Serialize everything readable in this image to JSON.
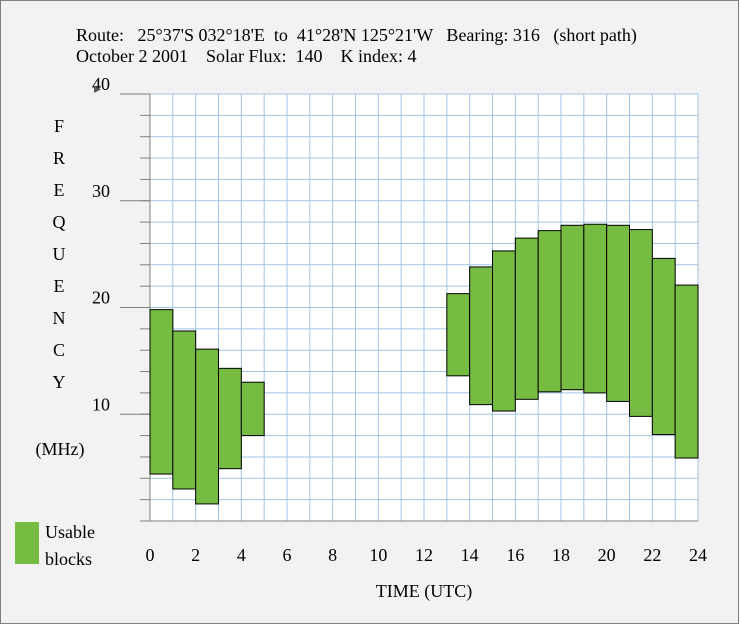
{
  "header": {
    "line1": "Route:   25°37'S 032°18'E  to  41°28'N 125°21'W   Bearing: 316   (short path)",
    "line2": "October 2 2001    Solar Flux:  140    K index: 4"
  },
  "ylabel_letters": [
    "F",
    "R",
    "E",
    "Q",
    "U",
    "E",
    "N",
    "C",
    "Y"
  ],
  "ylabel_unit": "(MHz)",
  "legend": {
    "line1": "Usable",
    "line2": "blocks"
  },
  "colors": {
    "bar": "#76bc43",
    "grid": "#9fc3e6",
    "axis": "#7f7f7f"
  },
  "chart_data": {
    "type": "bar",
    "xlabel": "TIME (UTC)",
    "x_ticks": [
      0,
      2,
      4,
      6,
      8,
      10,
      12,
      14,
      16,
      18,
      20,
      22,
      24
    ],
    "y_ticks": [
      10,
      20,
      30,
      40
    ],
    "xlim": [
      0,
      24
    ],
    "ylim": [
      0,
      40
    ],
    "bars": [
      {
        "start": 0,
        "end": 1,
        "low": 4.4,
        "high": 19.8
      },
      {
        "start": 1,
        "end": 2,
        "low": 3.0,
        "high": 17.8
      },
      {
        "start": 2,
        "end": 3,
        "low": 1.6,
        "high": 16.1
      },
      {
        "start": 3,
        "end": 4,
        "low": 4.9,
        "high": 14.3
      },
      {
        "start": 4,
        "end": 5,
        "low": 8.0,
        "high": 13.0
      },
      {
        "start": 13,
        "end": 14,
        "low": 13.6,
        "high": 21.3
      },
      {
        "start": 14,
        "end": 15,
        "low": 10.9,
        "high": 23.8
      },
      {
        "start": 15,
        "end": 16,
        "low": 10.3,
        "high": 25.3
      },
      {
        "start": 16,
        "end": 17,
        "low": 11.4,
        "high": 26.5
      },
      {
        "start": 17,
        "end": 18,
        "low": 12.1,
        "high": 27.2
      },
      {
        "start": 18,
        "end": 19,
        "low": 12.3,
        "high": 27.7
      },
      {
        "start": 19,
        "end": 20,
        "low": 12.0,
        "high": 27.8
      },
      {
        "start": 20,
        "end": 21,
        "low": 11.2,
        "high": 27.7
      },
      {
        "start": 21,
        "end": 22,
        "low": 9.8,
        "high": 27.3
      },
      {
        "start": 22,
        "end": 23,
        "low": 8.1,
        "high": 24.6
      },
      {
        "start": 23,
        "end": 24,
        "low": 5.9,
        "high": 22.1
      }
    ]
  }
}
